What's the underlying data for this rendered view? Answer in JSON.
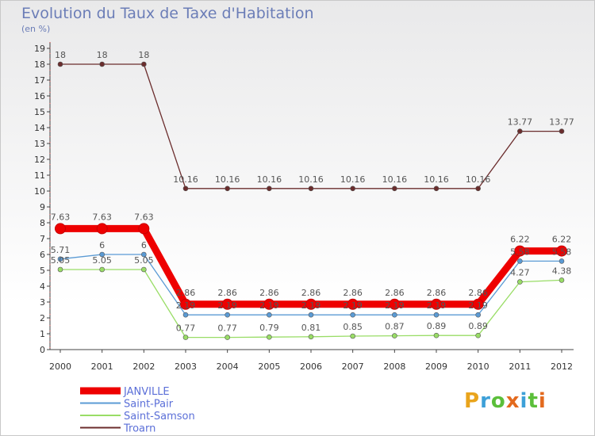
{
  "title": "Evolution du Taux de Taxe d'Habitation",
  "subtitle": "(en %)",
  "brand": {
    "text": "Proxiti",
    "colors": [
      "#e9a41c",
      "#3da0d8",
      "#5bbf3a",
      "#e36a1e",
      "#3da0d8",
      "#5bbf3a",
      "#e36a1e"
    ]
  },
  "chart_data": {
    "type": "line",
    "categories": [
      "2000",
      "2001",
      "2002",
      "2003",
      "2004",
      "2005",
      "2006",
      "2007",
      "2008",
      "2009",
      "2010",
      "2011",
      "2012"
    ],
    "ylim": [
      0,
      19
    ],
    "yticks": [
      0,
      1,
      2,
      3,
      4,
      5,
      6,
      7,
      8,
      9,
      10,
      11,
      12,
      13,
      14,
      15,
      16,
      17,
      18,
      19
    ],
    "grid": false,
    "legend_position": "bottom-left",
    "series": [
      {
        "name": "Troarn",
        "color": "#6b2d2d",
        "values": [
          18,
          18,
          18,
          10.16,
          10.16,
          10.16,
          10.16,
          10.16,
          10.16,
          10.16,
          10.16,
          13.77,
          13.77
        ],
        "labels": [
          "18",
          "18",
          "18",
          "10.16",
          "10.16",
          "10.16",
          "10.16",
          "10.16",
          "10.16",
          "10.16",
          "10.16",
          "13.77",
          "13.77"
        ]
      },
      {
        "name": "Saint-Samson",
        "color": "#99dd66",
        "values": [
          5.05,
          5.05,
          5.05,
          0.77,
          0.77,
          0.79,
          0.81,
          0.85,
          0.87,
          0.89,
          0.89,
          4.27,
          4.38
        ],
        "labels": [
          "5.05",
          "5.05",
          "5.05",
          "0.77",
          "0.77",
          "0.79",
          "0.81",
          "0.85",
          "0.87",
          "0.89",
          "0.89",
          "4.27",
          "4.38"
        ]
      },
      {
        "name": "Saint-Pair",
        "color": "#5b9bd5",
        "values": [
          5.71,
          6,
          6,
          2.19,
          2.19,
          2.19,
          2.19,
          2.19,
          2.19,
          2.19,
          2.19,
          5.58,
          5.58
        ],
        "labels": [
          "5.71",
          "6",
          "6",
          "2.19",
          "2.19",
          "2.19",
          "2.19",
          "2.19",
          "2.19",
          "2.19",
          "2.19",
          "5.58",
          "5.58"
        ]
      },
      {
        "name": "JANVILLE",
        "color": "#ee0000",
        "values": [
          7.63,
          7.63,
          7.63,
          2.86,
          2.86,
          2.86,
          2.86,
          2.86,
          2.86,
          2.86,
          2.86,
          6.22,
          6.22
        ],
        "labels": [
          "7.63",
          "7.63",
          "7.63",
          "2.86",
          "2.86",
          "2.86",
          "2.86",
          "2.86",
          "2.86",
          "2.86",
          "2.86",
          "6.22",
          "6.22"
        ]
      }
    ],
    "legend": [
      {
        "name": "JANVILLE",
        "color": "#ee0000"
      },
      {
        "name": "Saint-Pair",
        "color": "#5b9bd5"
      },
      {
        "name": "Saint-Samson",
        "color": "#99dd66"
      },
      {
        "name": "Troarn",
        "color": "#6b2d2d"
      }
    ]
  }
}
